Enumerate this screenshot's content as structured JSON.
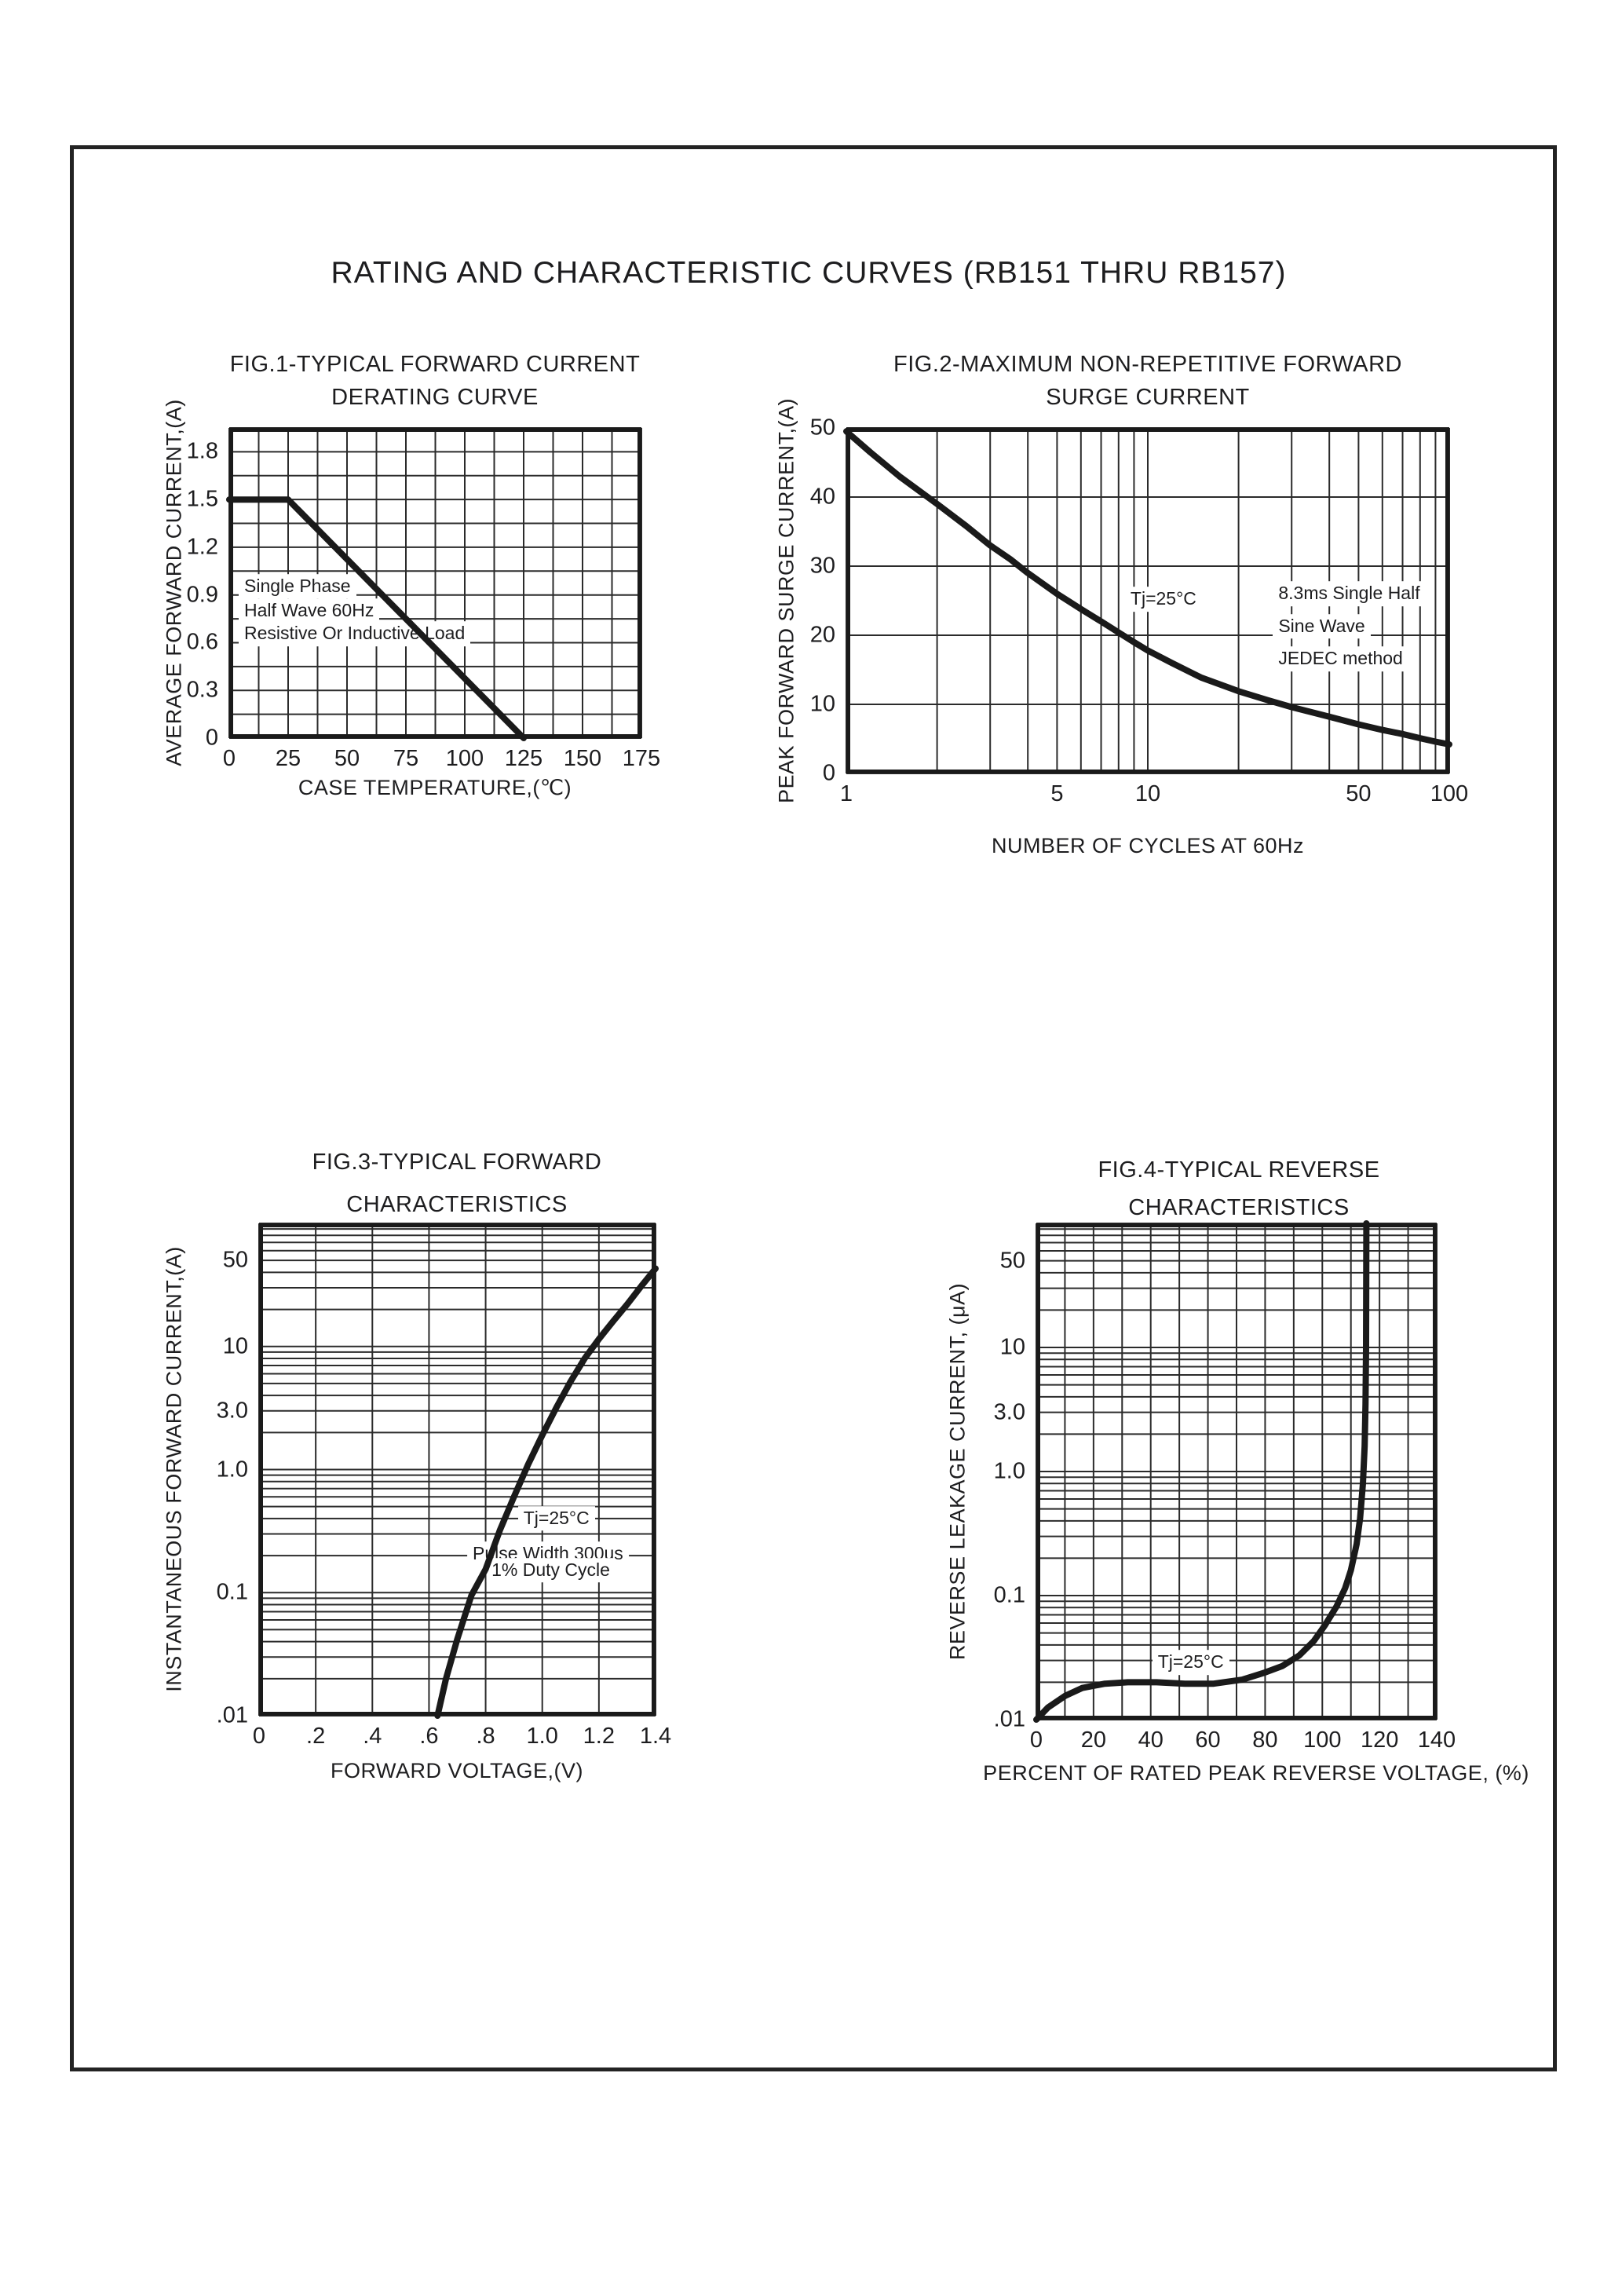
{
  "page": {
    "title": "RATING AND CHARACTERISTIC CURVES (RB151 THRU RB157)"
  },
  "chart_data": [
    {
      "id": "fig1",
      "type": "line",
      "title_lines": [
        "FIG.1-TYPICAL FORWARD CURRENT",
        "DERATING CURVE"
      ],
      "xlabel": "CASE TEMPERATURE,(℃)",
      "ylabel": "AVERAGE FORWARD CURRENT,(A)",
      "x_scale": "linear",
      "y_scale": "linear",
      "xlim": [
        0,
        175
      ],
      "ylim": [
        0,
        1.95
      ],
      "x_grid_step": 12.5,
      "y_grid_step": 0.15,
      "x_ticks": [
        0,
        25,
        50,
        75,
        100,
        125,
        150,
        175
      ],
      "x_tick_labels": [
        "0",
        "25",
        "50",
        "75",
        "100",
        "125",
        "150",
        "175"
      ],
      "y_ticks": [
        0,
        0.3,
        0.6,
        0.9,
        1.2,
        1.5,
        1.8
      ],
      "y_tick_labels": [
        "0",
        "0.3",
        "0.6",
        "0.9",
        "1.2",
        "1.5",
        "1.8"
      ],
      "series": [
        {
          "name": "forward-current-derating",
          "points": [
            [
              0,
              1.5
            ],
            [
              25,
              1.5
            ],
            [
              125,
              0
            ]
          ]
        }
      ],
      "annotations": [
        {
          "text": "Single Phase",
          "x": 4,
          "y": 0.955,
          "anchor": "start"
        },
        {
          "text": "Half Wave 60Hz",
          "x": 4,
          "y": 0.8,
          "anchor": "start"
        },
        {
          "text": "Resistive Or Inductive Load",
          "x": 4,
          "y": 0.655,
          "anchor": "start"
        }
      ]
    },
    {
      "id": "fig2",
      "type": "line",
      "title_lines": [
        "FIG.2-MAXIMUM NON-REPETITIVE FORWARD",
        "SURGE CURRENT"
      ],
      "xlabel": "NUMBER OF CYCLES AT 60Hz",
      "ylabel": "PEAK FORWARD SURGE CURRENT,(A)",
      "x_scale": "log",
      "y_scale": "linear",
      "xlim": [
        1,
        100
      ],
      "ylim": [
        0,
        50
      ],
      "y_grid_step": 10,
      "x_ticks": [
        1,
        5,
        10,
        50,
        100
      ],
      "x_tick_labels": [
        "1",
        "5",
        "10",
        "50",
        "100"
      ],
      "y_ticks": [
        0,
        10,
        20,
        30,
        40,
        50
      ],
      "y_tick_labels": [
        "0",
        "10",
        "20",
        "30",
        "40",
        "50"
      ],
      "series": [
        {
          "name": "surge-current",
          "points": [
            [
              1,
              49.5
            ],
            [
              1.2,
              46.5
            ],
            [
              1.5,
              43
            ],
            [
              2,
              39
            ],
            [
              2.5,
              35.8
            ],
            [
              3,
              33
            ],
            [
              3.5,
              31
            ],
            [
              4,
              29
            ],
            [
              5,
              26
            ],
            [
              6,
              23.8
            ],
            [
              7,
              22
            ],
            [
              8,
              20.4
            ],
            [
              9,
              19
            ],
            [
              10,
              17.8
            ],
            [
              12,
              16
            ],
            [
              15,
              13.9
            ],
            [
              20,
              11.9
            ],
            [
              25,
              10.6
            ],
            [
              30,
              9.6
            ],
            [
              40,
              8.2
            ],
            [
              50,
              7.1
            ],
            [
              60,
              6.3
            ],
            [
              70,
              5.7
            ],
            [
              80,
              5.1
            ],
            [
              90,
              4.6
            ],
            [
              100,
              4.2
            ]
          ]
        }
      ],
      "annotations": [
        {
          "text": "Tj=25°C",
          "x": 8.4,
          "y": 25.2,
          "anchor": "start"
        },
        {
          "text": "8.3ms Single Half",
          "x": 26,
          "y": 26,
          "anchor": "start"
        },
        {
          "text": "Sine Wave",
          "x": 26,
          "y": 21.3,
          "anchor": "start"
        },
        {
          "text": "JEDEC method",
          "x": 26,
          "y": 16.6,
          "anchor": "start"
        }
      ]
    },
    {
      "id": "fig3",
      "type": "line",
      "title_lines": [
        "FIG.3-TYPICAL FORWARD",
        "CHARACTERISTICS"
      ],
      "xlabel": "FORWARD VOLTAGE,(V)",
      "ylabel": "INSTANTANEOUS FORWARD CURRENT,(A)",
      "x_scale": "linear",
      "y_scale": "log",
      "xlim": [
        0,
        1.4
      ],
      "ylim": [
        0.01,
        100
      ],
      "x_grid_step": 0.2,
      "x_ticks": [
        0,
        0.2,
        0.4,
        0.6,
        0.8,
        1.0,
        1.2,
        1.4
      ],
      "x_tick_labels": [
        "0",
        ".2",
        ".4",
        ".6",
        ".8",
        "1.0",
        "1.2",
        "1.4"
      ],
      "y_ticks": [
        50,
        10,
        3,
        1,
        0.1,
        0.01
      ],
      "y_tick_labels": [
        "50",
        "10",
        "3.0",
        "1.0",
        "0.1",
        ".01"
      ],
      "series": [
        {
          "name": "forward-characteristics",
          "points": [
            [
              0.63,
              0.01
            ],
            [
              0.66,
              0.02
            ],
            [
              0.7,
              0.042
            ],
            [
              0.75,
              0.095
            ],
            [
              0.8,
              0.155
            ],
            [
              0.85,
              0.32
            ],
            [
              0.9,
              0.6
            ],
            [
              0.95,
              1.1
            ],
            [
              1.0,
              1.9
            ],
            [
              1.05,
              3.2
            ],
            [
              1.1,
              5.2
            ],
            [
              1.15,
              8
            ],
            [
              1.2,
              11.5
            ],
            [
              1.25,
              16
            ],
            [
              1.3,
              22
            ],
            [
              1.35,
              31
            ],
            [
              1.4,
              43
            ]
          ]
        }
      ],
      "annotations": [
        {
          "text": "Tj=25°C",
          "x": 1.05,
          "y": 0.4,
          "anchor": "middle"
        },
        {
          "text": "Pulse Width 300us",
          "x": 1.02,
          "y": 0.205,
          "anchor": "middle"
        },
        {
          "text": "1% Duty Cycle",
          "x": 1.03,
          "y": 0.152,
          "anchor": "middle"
        }
      ]
    },
    {
      "id": "fig4",
      "type": "line",
      "title_lines": [
        "FIG.4-TYPICAL REVERSE",
        "CHARACTERISTICS"
      ],
      "xlabel": "PERCENT OF RATED PEAK REVERSE VOLTAGE, (%)",
      "ylabel": "REVERSE LEAKAGE CURRENT, (μA)",
      "x_scale": "linear",
      "y_scale": "log",
      "xlim": [
        0,
        140
      ],
      "ylim": [
        0.01,
        100
      ],
      "x_grid_step": 10,
      "x_ticks": [
        0,
        20,
        40,
        60,
        80,
        100,
        120,
        140
      ],
      "x_tick_labels": [
        "0",
        "20",
        "40",
        "60",
        "80",
        "100",
        "120",
        "140"
      ],
      "y_ticks": [
        50,
        10,
        3,
        1,
        0.1,
        0.01
      ],
      "y_tick_labels": [
        "50",
        "10",
        "3.0",
        "1.0",
        "0.1",
        ".01"
      ],
      "series": [
        {
          "name": "reverse-characteristics",
          "points": [
            [
              0,
              0.01
            ],
            [
              4,
              0.0125
            ],
            [
              10,
              0.0155
            ],
            [
              16,
              0.018
            ],
            [
              24,
              0.0195
            ],
            [
              32,
              0.02
            ],
            [
              42,
              0.02
            ],
            [
              52,
              0.0195
            ],
            [
              62,
              0.0195
            ],
            [
              72,
              0.021
            ],
            [
              80,
              0.024
            ],
            [
              86,
              0.027
            ],
            [
              92,
              0.033
            ],
            [
              97,
              0.043
            ],
            [
              101,
              0.058
            ],
            [
              105,
              0.082
            ],
            [
              108,
              0.115
            ],
            [
              110,
              0.16
            ],
            [
              112,
              0.26
            ],
            [
              113.2,
              0.42
            ],
            [
              114.2,
              0.8
            ],
            [
              114.8,
              1.6
            ],
            [
              115.1,
              3.5
            ],
            [
              115.3,
              10
            ],
            [
              115.4,
              100
            ]
          ]
        }
      ],
      "annotations": [
        {
          "text": "Tj=25°C",
          "x": 54,
          "y": 0.029,
          "anchor": "middle"
        }
      ]
    }
  ]
}
